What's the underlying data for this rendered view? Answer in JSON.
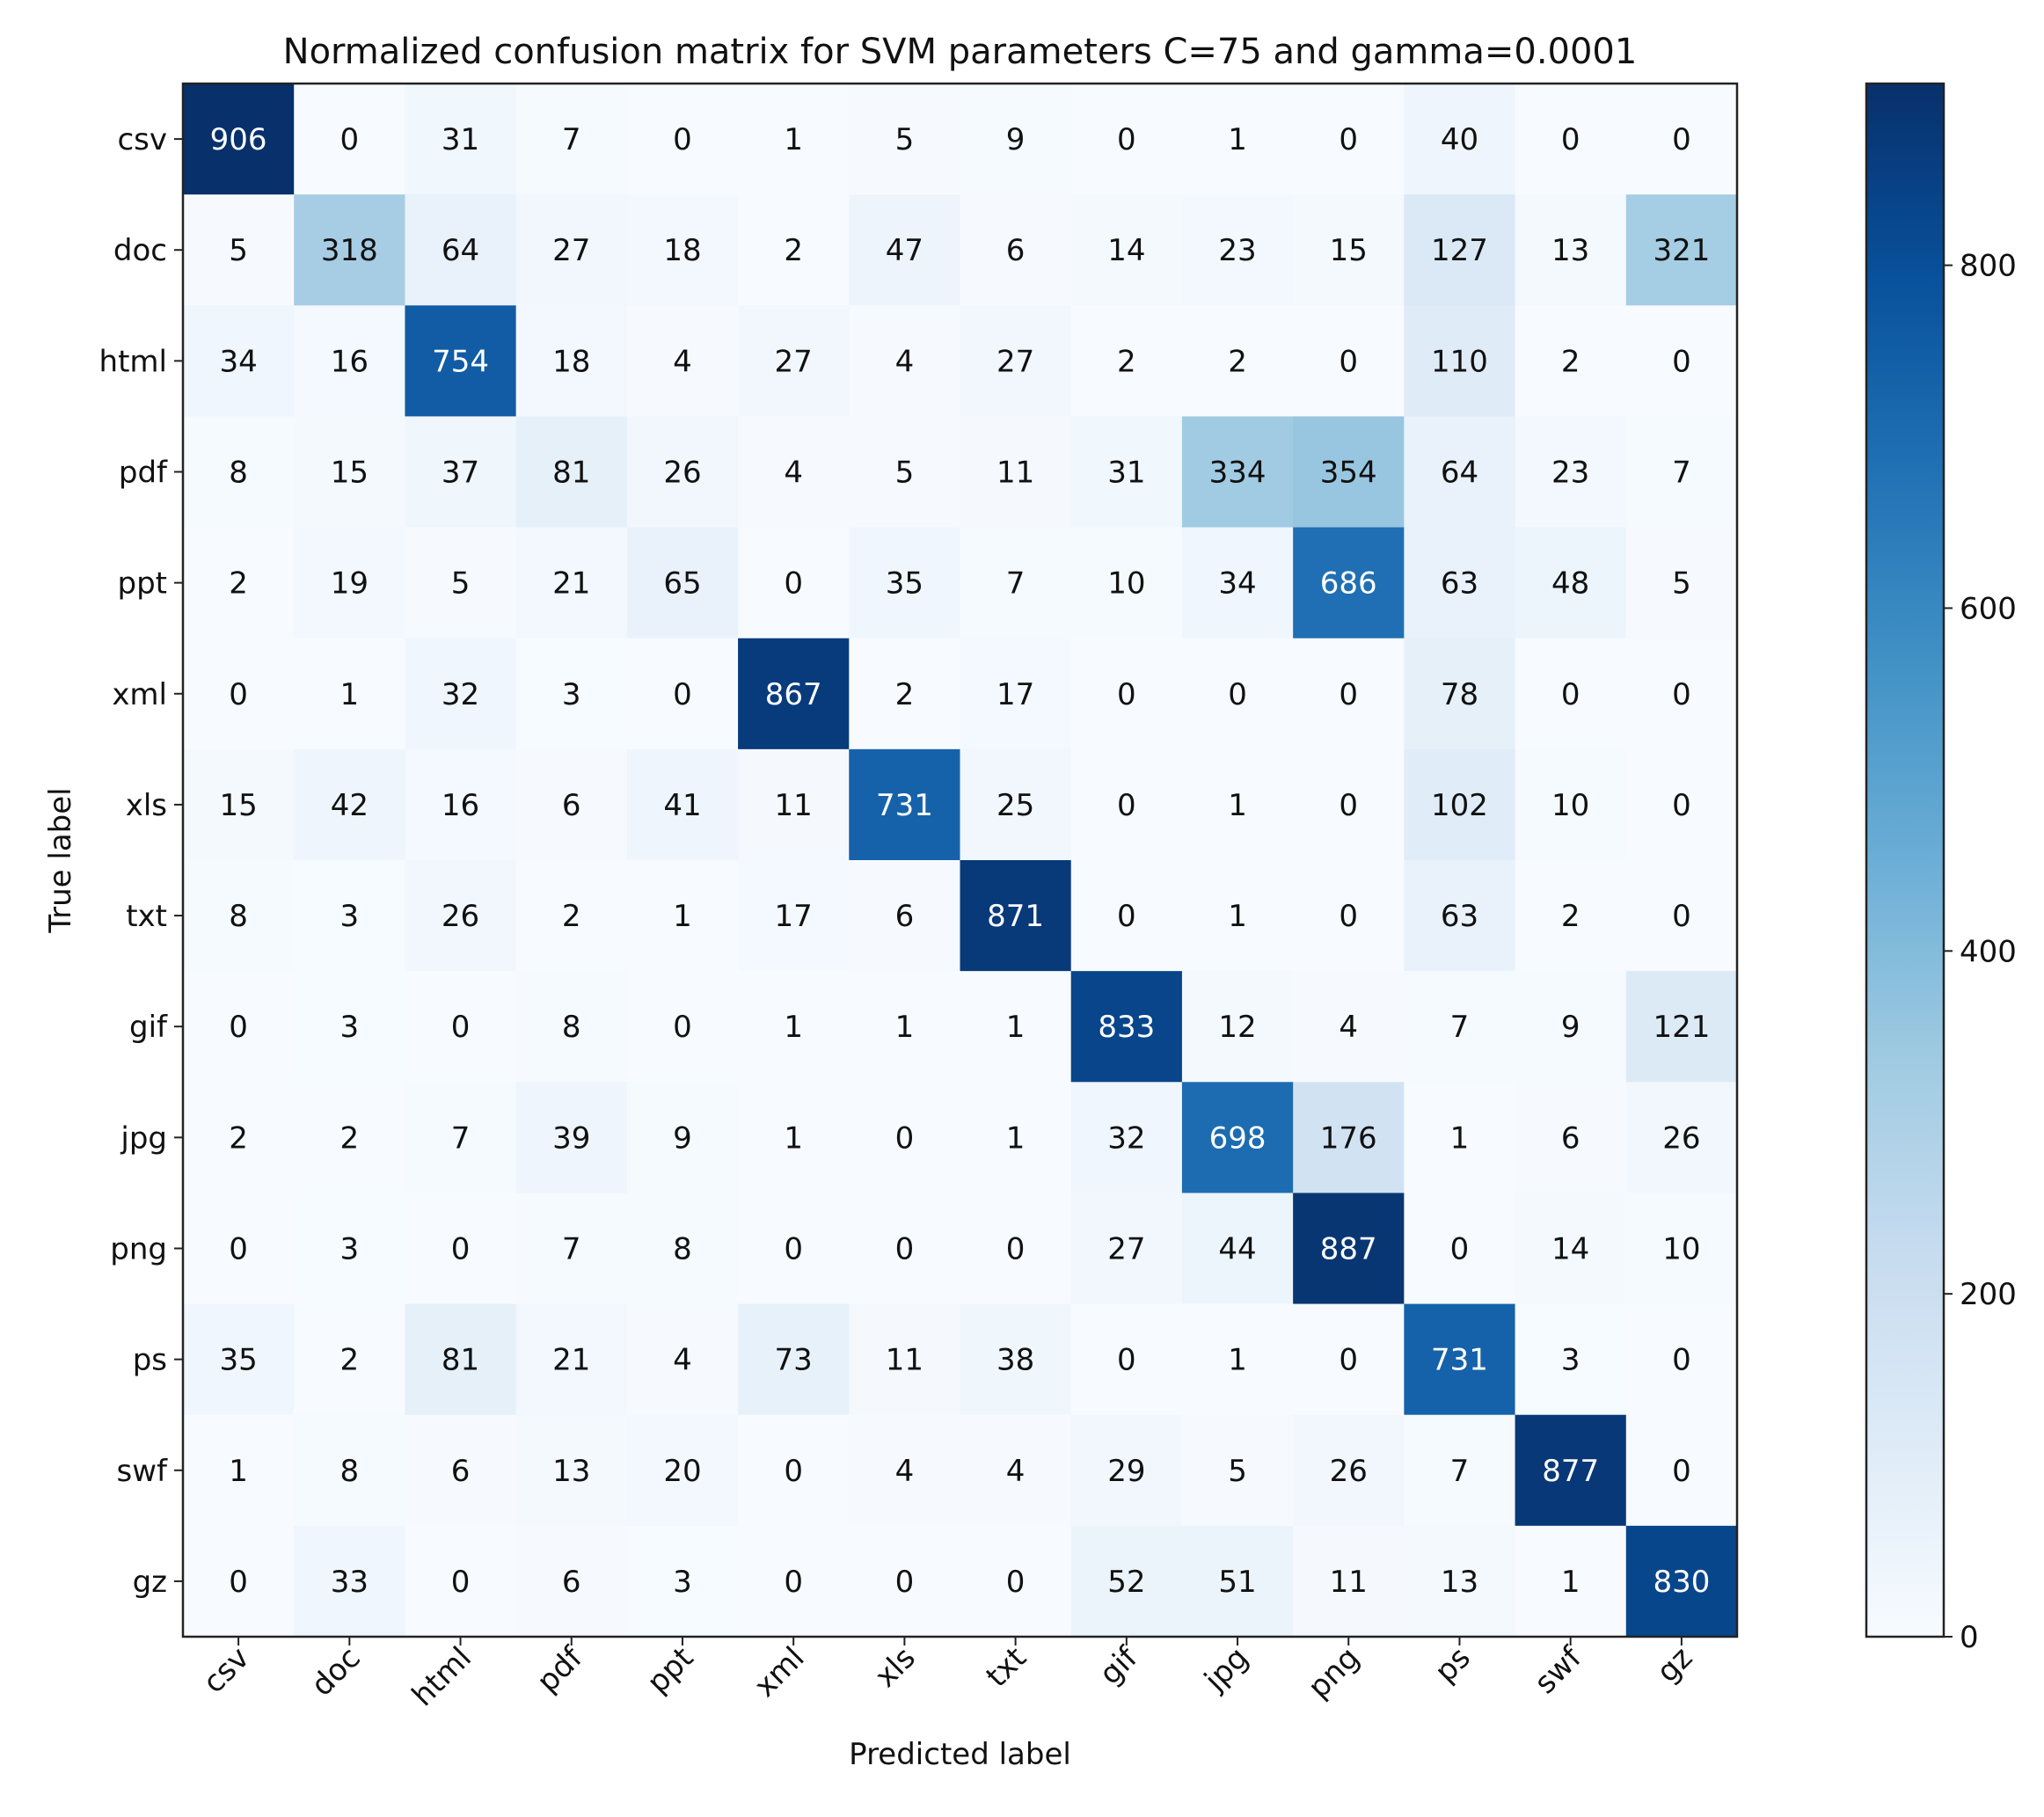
{
  "chart_data": {
    "type": "heatmap",
    "title": "Normalized confusion matrix for SVM parameters C=75 and gamma=0.0001",
    "xlabel": "Predicted label",
    "ylabel": "True label",
    "row_labels": [
      "csv",
      "doc",
      "html",
      "pdf",
      "ppt",
      "xml",
      "xls",
      "txt",
      "gif",
      "jpg",
      "png",
      "ps",
      "swf",
      "gz"
    ],
    "col_labels": [
      "csv",
      "doc",
      "html",
      "pdf",
      "ppt",
      "xml",
      "xls",
      "txt",
      "gif",
      "jpg",
      "png",
      "ps",
      "swf",
      "gz"
    ],
    "values": [
      [
        906,
        0,
        31,
        7,
        0,
        1,
        5,
        9,
        0,
        1,
        0,
        40,
        0,
        0
      ],
      [
        5,
        318,
        64,
        27,
        18,
        2,
        47,
        6,
        14,
        23,
        15,
        127,
        13,
        321
      ],
      [
        34,
        16,
        754,
        18,
        4,
        27,
        4,
        27,
        2,
        2,
        0,
        110,
        2,
        0
      ],
      [
        8,
        15,
        37,
        81,
        26,
        4,
        5,
        11,
        31,
        334,
        354,
        64,
        23,
        7
      ],
      [
        2,
        19,
        5,
        21,
        65,
        0,
        35,
        7,
        10,
        34,
        686,
        63,
        48,
        5
      ],
      [
        0,
        1,
        32,
        3,
        0,
        867,
        2,
        17,
        0,
        0,
        0,
        78,
        0,
        0
      ],
      [
        15,
        42,
        16,
        6,
        41,
        11,
        731,
        25,
        0,
        1,
        0,
        102,
        10,
        0
      ],
      [
        8,
        3,
        26,
        2,
        1,
        17,
        6,
        871,
        0,
        1,
        0,
        63,
        2,
        0
      ],
      [
        0,
        3,
        0,
        8,
        0,
        1,
        1,
        1,
        833,
        12,
        4,
        7,
        9,
        121
      ],
      [
        2,
        2,
        7,
        39,
        9,
        1,
        0,
        1,
        32,
        698,
        176,
        1,
        6,
        26
      ],
      [
        0,
        3,
        0,
        7,
        8,
        0,
        0,
        0,
        27,
        44,
        887,
        0,
        14,
        10
      ],
      [
        35,
        2,
        81,
        21,
        4,
        73,
        11,
        38,
        0,
        1,
        0,
        731,
        3,
        0
      ],
      [
        1,
        8,
        6,
        13,
        20,
        0,
        4,
        4,
        29,
        5,
        26,
        7,
        877,
        0
      ],
      [
        0,
        33,
        0,
        6,
        3,
        0,
        0,
        0,
        52,
        51,
        11,
        13,
        1,
        830
      ]
    ],
    "colorbar": {
      "range": [
        0,
        906
      ],
      "ticks": [
        0,
        200,
        400,
        600,
        800
      ],
      "colormap": "Blues",
      "low_color": "#f7fbff",
      "high_color": "#08306b"
    },
    "text_threshold": 453
  }
}
